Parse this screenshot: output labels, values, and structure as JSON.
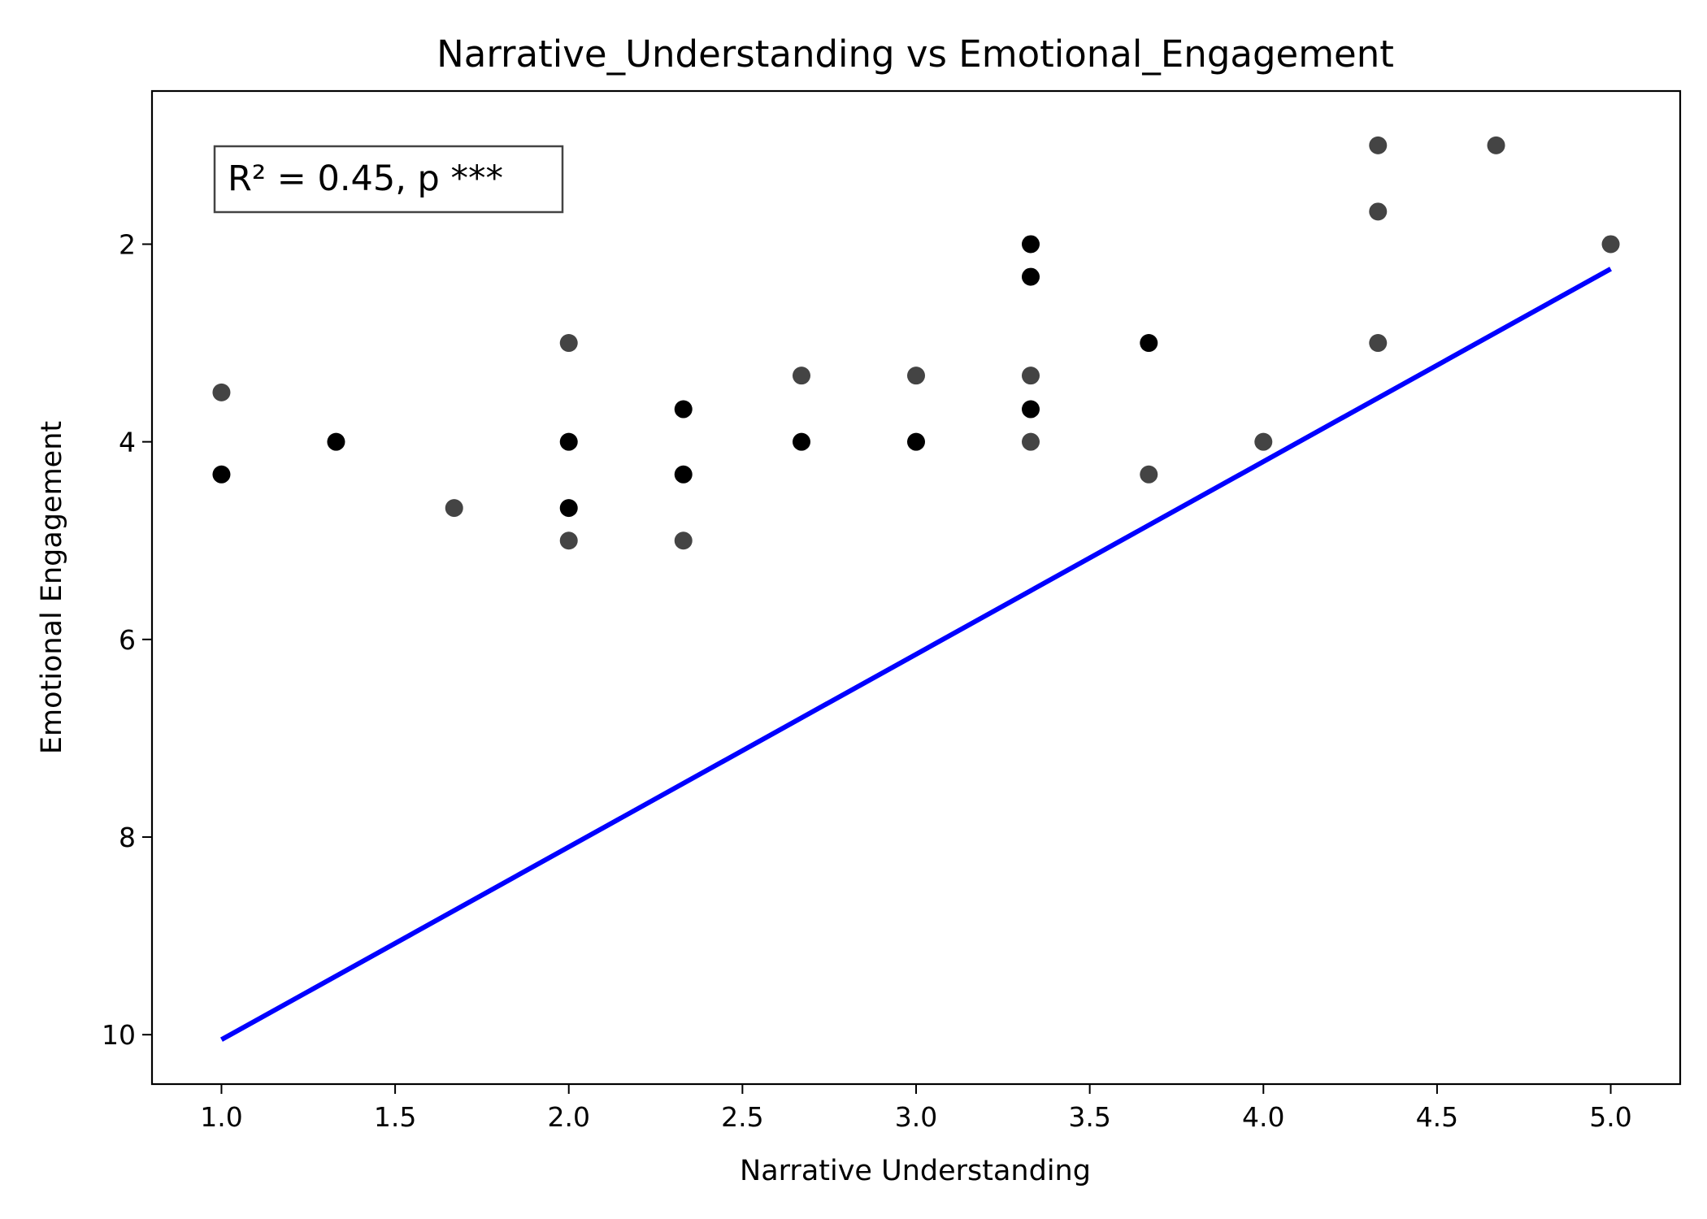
{
  "chart_data": {
    "type": "scatter",
    "title": "Narrative_Understanding vs Emotional_Engagement",
    "xlabel": "Narrative Understanding",
    "ylabel": "Emotional Engagement",
    "xlim": [
      0.8,
      5.2
    ],
    "ylim": [
      10.5,
      0.45
    ],
    "y_inverted": true,
    "xticks": [
      "1.0",
      "1.5",
      "2.0",
      "2.5",
      "3.0",
      "3.5",
      "4.0",
      "4.5",
      "5.0"
    ],
    "yticks": [
      "2",
      "4",
      "6",
      "8",
      "10"
    ],
    "grid": false,
    "annotation": "R² = 0.45, p ***",
    "colors": {
      "dark_point": "#000000",
      "gray_point": "#444444",
      "fit_line": "#0000ff"
    },
    "series": [
      {
        "color": "#000000",
        "points": [
          [
            1.0,
            4.33
          ],
          [
            1.33,
            4.0
          ],
          [
            2.0,
            4.0
          ],
          [
            2.0,
            4.67
          ],
          [
            2.33,
            3.67
          ],
          [
            2.33,
            4.33
          ],
          [
            2.67,
            4.0
          ],
          [
            3.0,
            4.0
          ],
          [
            3.33,
            2.0
          ],
          [
            3.33,
            2.33
          ],
          [
            3.33,
            3.67
          ],
          [
            3.67,
            3.0
          ]
        ]
      },
      {
        "color": "#444444",
        "points": [
          [
            1.0,
            3.5
          ],
          [
            1.67,
            4.67
          ],
          [
            2.0,
            3.0
          ],
          [
            2.0,
            5.0
          ],
          [
            2.33,
            5.0
          ],
          [
            2.67,
            3.33
          ],
          [
            3.0,
            3.33
          ],
          [
            3.33,
            3.33
          ],
          [
            3.33,
            4.0
          ],
          [
            3.67,
            4.33
          ],
          [
            4.0,
            4.0
          ],
          [
            4.33,
            1.0
          ],
          [
            4.33,
            1.67
          ],
          [
            4.33,
            3.0
          ],
          [
            4.67,
            1.0
          ],
          [
            5.0,
            2.0
          ]
        ]
      }
    ],
    "fit_line": {
      "x": [
        1.0,
        5.0
      ],
      "y": [
        10.05,
        2.25
      ]
    }
  }
}
